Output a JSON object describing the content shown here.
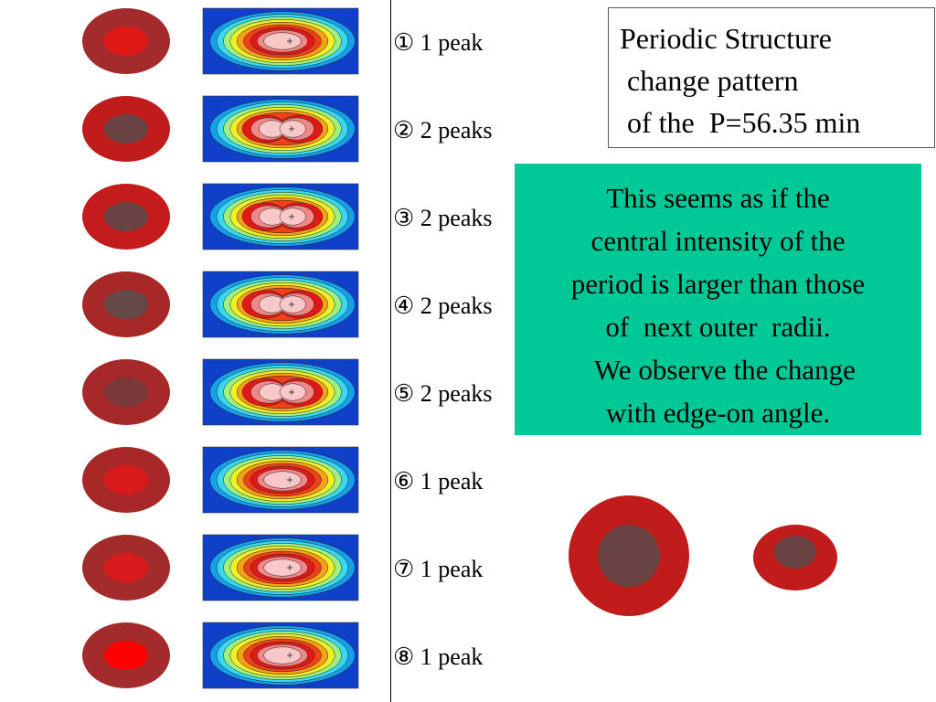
{
  "rows": [
    {
      "label": "① 1 peak",
      "outer_color": "#a32b2b",
      "core_color": "#e01818",
      "peaks": 1
    },
    {
      "label": "② 2 peaks",
      "outer_color": "#c01c1c",
      "core_color": "#6a4444",
      "peaks": 2
    },
    {
      "label": "③ 2 peaks",
      "outer_color": "#c41c1c",
      "core_color": "#6a4444",
      "peaks": 2
    },
    {
      "label": "④ 2 peaks",
      "outer_color": "#a82727",
      "core_color": "#654848",
      "peaks": 2
    },
    {
      "label": "⑤ 2 peaks",
      "outer_color": "#a72828",
      "core_color": "#7a3a3a",
      "peaks": 2
    },
    {
      "label": "⑥ 1 peak",
      "outer_color": "#a82828",
      "core_color": "#d81a1a",
      "peaks": 1
    },
    {
      "label": "⑦ 1 peak",
      "outer_color": "#a32b2b",
      "core_color": "#d81a1a",
      "peaks": 1
    },
    {
      "label": "⑧ 1 peak",
      "outer_color": "#a32b2b",
      "core_color": "#ff0000",
      "peaks": 1
    }
  ],
  "title": {
    "line1": "Periodic Structure",
    "line2": " change pattern",
    "line3": " of the  P=56.35 min"
  },
  "note": {
    "line1": "This seems as if the",
    "line2": "central intensity of the",
    "line3": "period is larger than those",
    "line4": "of  next outer  radii.",
    "line5": "  We observe the change",
    "line6": "with edge-on angle.",
    "background": "#00c896"
  },
  "legend_discs": {
    "outer_color": "#c01c1c",
    "core_color": "#6a4444"
  }
}
